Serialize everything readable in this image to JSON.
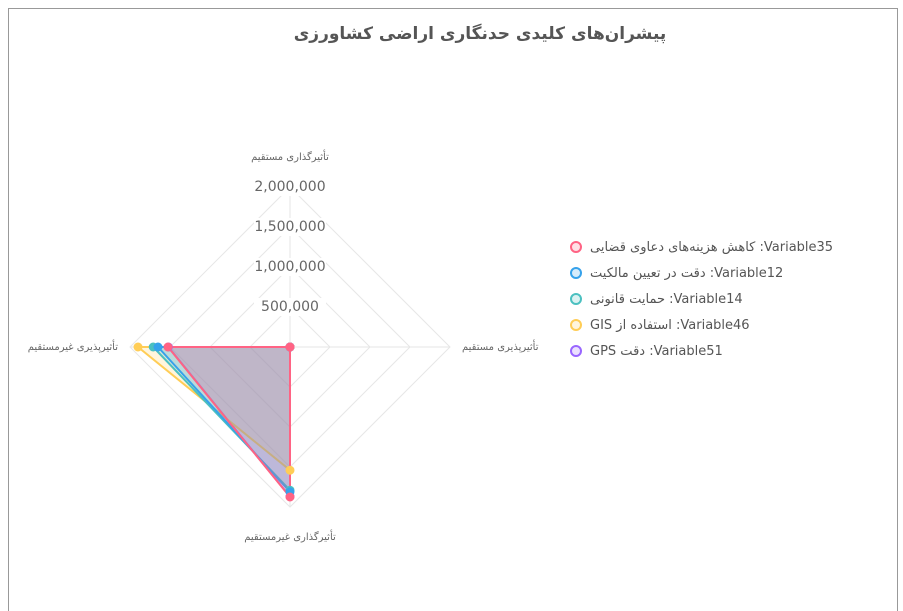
{
  "chart_data": {
    "type": "radar",
    "title": "پیشران‌های کلیدی حدنگاری اراضی کشاورزی",
    "categories": [
      "تأثیرگذاری مستقیم",
      "تأثیرپذیری مستقیم",
      "تأثیرگذاری غیرمستقیم",
      "تأثیرپذیری غیرمستقیم"
    ],
    "rlim": [
      0,
      2000000
    ],
    "rticks": [
      {
        "value": 500000,
        "label": "500,000"
      },
      {
        "value": 1000000,
        "label": "1,000,000"
      },
      {
        "value": 1500000,
        "label": "1,500,000"
      },
      {
        "value": 2000000,
        "label": "2,000,000"
      }
    ],
    "series": [
      {
        "name": "Variable35: کاهش هزینه‌های دعاوی قضایی",
        "color": "#ff6384",
        "values": [
          0,
          0,
          1875000,
          1525000
        ]
      },
      {
        "name": "Variable12: دقت در تعیین مالکیت",
        "color": "#36a2eb",
        "values": [
          0,
          0,
          1810000,
          1650000
        ]
      },
      {
        "name": "Variable14: حمایت قانونی",
        "color": "#4bc0c0",
        "values": [
          0,
          0,
          1790000,
          1710000
        ]
      },
      {
        "name": "Variable46: استفاده از GIS",
        "color": "#ffcd56",
        "values": [
          0,
          0,
          1540000,
          1900000
        ]
      },
      {
        "name": "Variable51: دقت GPS",
        "color": "#9966ff",
        "values": [
          0,
          0,
          1870000,
          1520000
        ]
      }
    ],
    "legend": "right"
  }
}
